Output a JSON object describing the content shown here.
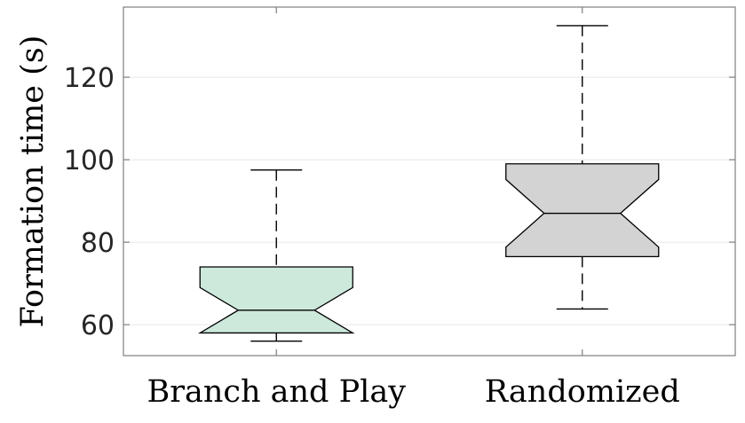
{
  "chart_data": {
    "type": "boxplot",
    "notched": true,
    "ylabel": "Formation time (s)",
    "ylim": [
      52.5,
      137
    ],
    "yticks": [
      60,
      80,
      100,
      120
    ],
    "grid": true,
    "categories": [
      "Branch and Play",
      "Randomized"
    ],
    "boxes": [
      {
        "category": "Branch and Play",
        "min": 56.0,
        "q1": 58.0,
        "median": 63.5,
        "q3": 74.0,
        "max": 97.5,
        "notch_low": 58.0,
        "notch_high": 69.0,
        "color": "#cce9dc"
      },
      {
        "category": "Randomized",
        "min": 63.8,
        "q1": 76.5,
        "median": 87.0,
        "q3": 99.0,
        "max": 132.5,
        "notch_low": 78.8,
        "notch_high": 95.2,
        "color": "#d3d3d3"
      }
    ]
  }
}
